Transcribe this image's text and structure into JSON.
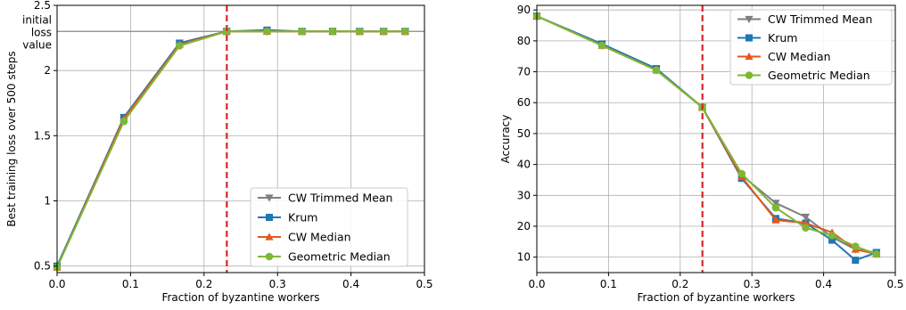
{
  "chart_data": [
    {
      "type": "line",
      "xlabel": "Fraction of byzantine workers",
      "ylabel": "Best training loss over 500 steps",
      "xlim": [
        0.0,
        0.5
      ],
      "ylim": [
        0.45,
        2.5
      ],
      "xticks": [
        0.0,
        0.1,
        0.2,
        0.3,
        0.4,
        0.5
      ],
      "xtick_labels": [
        "0.0",
        "0.1",
        "0.2",
        "0.3",
        "0.4",
        "0.5"
      ],
      "yticks": [
        0.5,
        1,
        1.5,
        2,
        2.5
      ],
      "ytick_labels": [
        "0.5",
        "1",
        "1.5",
        "2",
        "2.5"
      ],
      "grid": true,
      "legend_position": "lower-right",
      "reference_hline": {
        "y": 2.3,
        "color": "#888888",
        "label_lines": [
          "initial",
          "loss",
          "value"
        ]
      },
      "reference_vline": {
        "x": 0.231,
        "color": "#d62728"
      },
      "x": [
        0.0,
        0.0909,
        0.1667,
        0.2308,
        0.2857,
        0.3333,
        0.375,
        0.4118,
        0.4444,
        0.4737
      ],
      "series": [
        {
          "name": "CW Trimmed Mean",
          "color": "#7f7f7f",
          "marker": "triangle-down",
          "values": [
            0.5,
            1.64,
            2.21,
            2.3,
            2.3,
            2.3,
            2.3,
            2.3,
            2.3,
            2.3
          ]
        },
        {
          "name": "Krum",
          "color": "#1f77b4",
          "marker": "square",
          "values": [
            0.5,
            1.64,
            2.21,
            2.3,
            2.31,
            2.3,
            2.3,
            2.3,
            2.3,
            2.3
          ]
        },
        {
          "name": "CW Median",
          "color": "#e2581d",
          "marker": "triangle-up",
          "values": [
            0.49,
            1.63,
            2.2,
            2.3,
            2.3,
            2.3,
            2.3,
            2.3,
            2.3,
            2.3
          ]
        },
        {
          "name": "Geometric Median",
          "color": "#7fb735",
          "marker": "circle",
          "values": [
            0.49,
            1.61,
            2.19,
            2.3,
            2.3,
            2.3,
            2.3,
            2.3,
            2.3,
            2.3
          ]
        }
      ]
    },
    {
      "type": "line",
      "xlabel": "Fraction of byzantine workers",
      "ylabel": "Accuracy",
      "xlim": [
        0.0,
        0.5
      ],
      "ylim": [
        5,
        91.5
      ],
      "xticks": [
        0.0,
        0.1,
        0.2,
        0.3,
        0.4,
        0.5
      ],
      "xtick_labels": [
        "0.0",
        "0.1",
        "0.2",
        "0.3",
        "0.4",
        "0.5"
      ],
      "yticks": [
        10,
        20,
        30,
        40,
        50,
        60,
        70,
        80,
        90
      ],
      "ytick_labels": [
        "10",
        "20",
        "30",
        "40",
        "50",
        "60",
        "70",
        "80",
        "90"
      ],
      "grid": true,
      "legend_position": "top-right",
      "reference_vline": {
        "x": 0.231,
        "color": "#d62728"
      },
      "x": [
        0.0,
        0.0909,
        0.1667,
        0.2308,
        0.2857,
        0.3333,
        0.375,
        0.4118,
        0.4444,
        0.4737
      ],
      "series": [
        {
          "name": "CW Trimmed Mean",
          "color": "#7f7f7f",
          "marker": "triangle-down",
          "values": [
            88,
            79,
            71,
            58.5,
            36.5,
            27.5,
            23,
            16.5,
            12.5,
            11.5
          ]
        },
        {
          "name": "Krum",
          "color": "#1f77b4",
          "marker": "square",
          "values": [
            88,
            79,
            71,
            58.5,
            35.5,
            22.5,
            21,
            15.5,
            9,
            11.5
          ]
        },
        {
          "name": "CW Median",
          "color": "#e2581d",
          "marker": "triangle-up",
          "values": [
            88,
            78.5,
            70.5,
            58.5,
            36,
            22,
            21,
            18,
            12.5,
            11
          ]
        },
        {
          "name": "Geometric Median",
          "color": "#7fb735",
          "marker": "circle",
          "values": [
            88,
            78.5,
            70.5,
            58.5,
            37,
            26,
            19.5,
            17,
            13.5,
            11
          ]
        }
      ]
    }
  ]
}
